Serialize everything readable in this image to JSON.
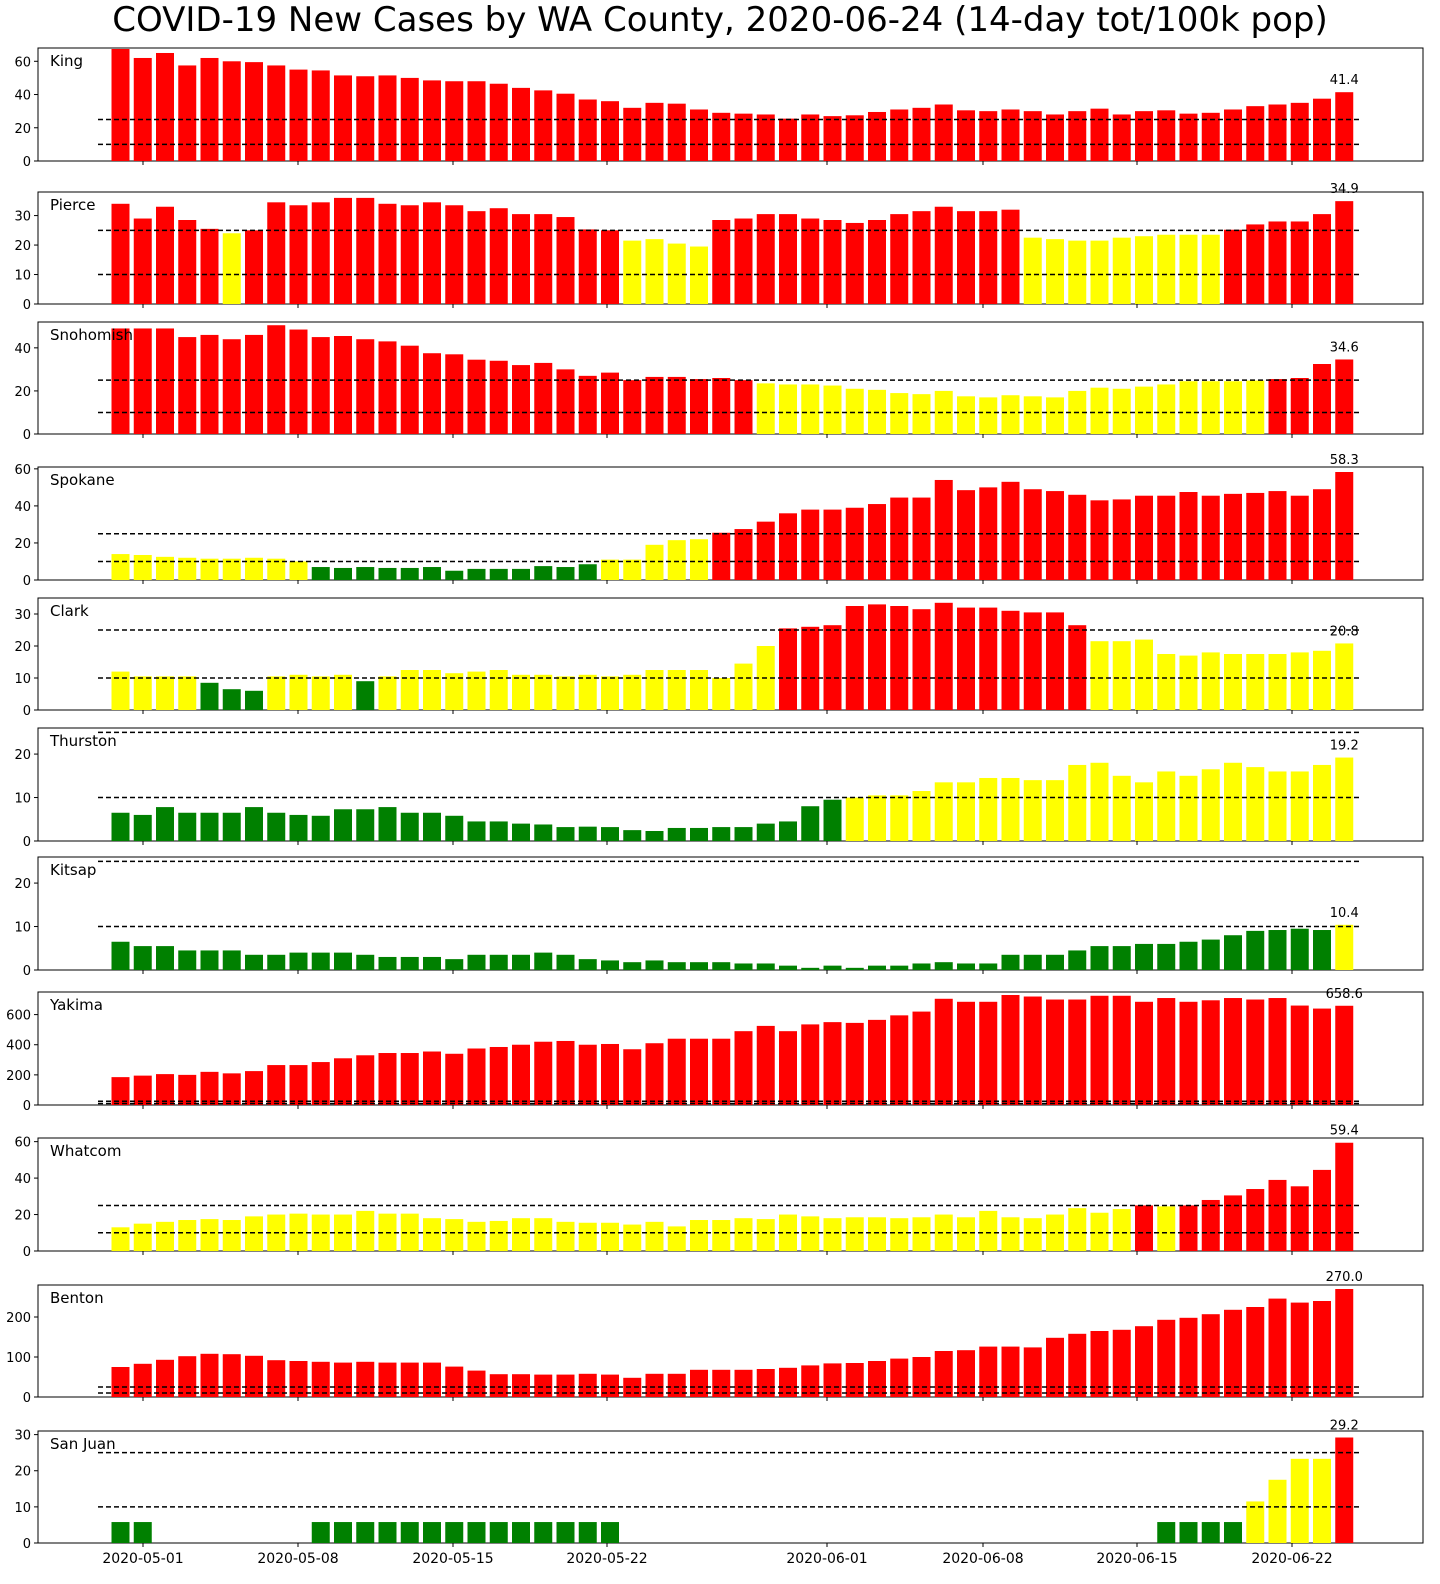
{
  "title": "COVID-19 New Cases by WA County, 2020-06-24 (14-day tot/100k pop)",
  "colors": {
    "high": "#ff0000",
    "medium": "#ffff00",
    "low": "#008000",
    "threshold_line": "#000000"
  },
  "x_ticks": [
    "2020-05-01",
    "2020-05-08",
    "2020-05-15",
    "2020-05-22",
    "2020-06-01",
    "2020-06-08",
    "2020-06-15",
    "2020-06-22"
  ],
  "chart_data": [
    {
      "type": "bar",
      "county": "King",
      "ylim": [
        0,
        68
      ],
      "yticks": [
        0,
        20,
        40,
        60
      ],
      "thresholds": [
        10,
        25
      ],
      "last_label": "41.4",
      "values": [
        68.5,
        62,
        65,
        57.5,
        62,
        60,
        59.5,
        57.5,
        55,
        54.5,
        51.5,
        51,
        51.5,
        50,
        48.5,
        48,
        48,
        46.5,
        44,
        42.5,
        40.5,
        37,
        36,
        32,
        35,
        34.5,
        31,
        29,
        28.5,
        28,
        25.5,
        28,
        27,
        27.5,
        29.5,
        31,
        32,
        34,
        30.5,
        30,
        31,
        30,
        28,
        30,
        31.5,
        28,
        30,
        30.5,
        28.5,
        29,
        31,
        33,
        34,
        35,
        37.5,
        41.4
      ]
    },
    {
      "type": "bar",
      "county": "Pierce",
      "ylim": [
        0,
        38
      ],
      "yticks": [
        0,
        10,
        20,
        30
      ],
      "thresholds": [
        10,
        25
      ],
      "last_label": "34.9",
      "values": [
        34,
        29,
        33,
        28.5,
        25.5,
        24,
        25,
        34.5,
        33.5,
        34.5,
        36,
        36,
        34,
        33.5,
        34.5,
        33.5,
        31.5,
        32.5,
        30.5,
        30.5,
        29.5,
        25.3,
        25,
        21.5,
        22,
        20.5,
        19.5,
        28.5,
        29,
        30.5,
        30.5,
        29,
        28.5,
        27.5,
        28.5,
        30.5,
        31.5,
        33,
        31.5,
        31.5,
        32,
        22.5,
        22,
        21.5,
        21.5,
        22.5,
        23,
        23.5,
        23.5,
        23.5,
        25.2,
        27,
        28,
        28,
        30.5,
        34.9
      ]
    },
    {
      "type": "bar",
      "county": "Snohomish",
      "ylim": [
        0,
        52
      ],
      "yticks": [
        0,
        20,
        40
      ],
      "thresholds": [
        10,
        25
      ],
      "last_label": "34.6",
      "values": [
        49,
        49,
        49,
        45,
        46,
        44,
        46,
        50.5,
        48.5,
        45,
        45.5,
        44,
        43,
        41,
        37.5,
        37,
        34.5,
        34,
        32,
        33,
        30,
        27,
        28.5,
        25,
        26.5,
        26.5,
        25.5,
        26,
        25,
        23.5,
        23,
        23,
        22.5,
        21,
        20.5,
        19,
        18.5,
        20,
        17.5,
        17,
        18,
        17.5,
        17,
        20,
        21.5,
        21,
        22,
        23,
        24.5,
        24.5,
        24.5,
        24.8,
        25.5,
        26,
        32.5,
        34.6
      ]
    },
    {
      "type": "bar",
      "county": "Spokane",
      "ylim": [
        0,
        61
      ],
      "yticks": [
        0,
        20,
        40,
        60
      ],
      "thresholds": [
        10,
        25
      ],
      "last_label": "58.3",
      "values": [
        14,
        13.5,
        12.5,
        12,
        11.5,
        11.5,
        12,
        11.5,
        10,
        7,
        6.5,
        7,
        6.5,
        6.5,
        7,
        5,
        6,
        6,
        6,
        7.5,
        7,
        8.5,
        11,
        11,
        19,
        21.5,
        22,
        25.5,
        27.5,
        31.5,
        36,
        38,
        38,
        39,
        41,
        44.5,
        44.5,
        54,
        48.5,
        50,
        53,
        49,
        48,
        46,
        43,
        43.5,
        45.5,
        45.5,
        47.5,
        45.5,
        46.5,
        47,
        48,
        45.5,
        49,
        58.3
      ]
    },
    {
      "type": "bar",
      "county": "Clark",
      "ylim": [
        0,
        35
      ],
      "yticks": [
        0,
        10,
        20,
        30
      ],
      "thresholds": [
        10,
        25
      ],
      "last_label": "20.8",
      "values": [
        12,
        10.5,
        10.5,
        10.5,
        8.5,
        6.5,
        6,
        10.5,
        11,
        10.5,
        11,
        9,
        10.5,
        12.5,
        12.5,
        11.5,
        12,
        12.5,
        11,
        11,
        10.5,
        11,
        10.5,
        11,
        12.5,
        12.5,
        12.5,
        10,
        14.5,
        20,
        25.5,
        26,
        26.5,
        32.5,
        33,
        32.5,
        31.5,
        33.5,
        32,
        32,
        31,
        30.5,
        30.5,
        26.5,
        21.5,
        21.5,
        22,
        17.5,
        17,
        18,
        17.5,
        17.5,
        17.5,
        18,
        18.5,
        20.8
      ]
    },
    {
      "type": "bar",
      "county": "Thurston",
      "ylim": [
        0,
        26
      ],
      "yticks": [
        0,
        10,
        20
      ],
      "thresholds": [
        10,
        25
      ],
      "last_label": "19.2",
      "values": [
        6.5,
        6,
        7.8,
        6.5,
        6.5,
        6.5,
        7.8,
        6.5,
        6,
        5.8,
        7.3,
        7.3,
        7.8,
        6.5,
        6.5,
        5.8,
        4.5,
        4.5,
        4,
        3.8,
        3.2,
        3.3,
        3.2,
        2.5,
        2.3,
        3,
        3,
        3.2,
        3.2,
        4,
        4.5,
        8,
        9.5,
        10,
        10.5,
        10.5,
        11.5,
        13.5,
        13.5,
        14.5,
        14.5,
        14,
        14,
        17.5,
        18,
        15,
        13.5,
        16,
        15,
        16.5,
        18,
        17,
        16,
        16,
        17.5,
        19.2
      ]
    },
    {
      "type": "bar",
      "county": "Kitsap",
      "ylim": [
        0,
        26
      ],
      "yticks": [
        0,
        10,
        20
      ],
      "thresholds": [
        10,
        25
      ],
      "last_label": "10.4",
      "values": [
        6.5,
        5.5,
        5.5,
        4.5,
        4.5,
        4.5,
        3.5,
        3.5,
        4,
        4,
        4,
        3.5,
        3,
        3,
        3,
        2.5,
        3.5,
        3.5,
        3.5,
        4,
        3.5,
        2.5,
        2.2,
        1.8,
        2.2,
        1.8,
        1.8,
        1.8,
        1.5,
        1.5,
        1,
        0.5,
        1,
        0.5,
        1,
        1,
        1.5,
        1.8,
        1.5,
        1.5,
        3.5,
        3.5,
        3.5,
        4.5,
        5.5,
        5.5,
        6,
        6,
        6.5,
        7,
        8,
        9,
        9.2,
        9.5,
        9.2,
        10.4
      ]
    },
    {
      "type": "bar",
      "county": "Yakima",
      "ylim": [
        0,
        750
      ],
      "yticks": [
        0,
        200,
        400,
        600
      ],
      "thresholds": [
        10,
        25
      ],
      "last_label": "658.6",
      "values": [
        185,
        195,
        205,
        200,
        220,
        210,
        225,
        265,
        265,
        285,
        310,
        330,
        345,
        345,
        355,
        340,
        375,
        385,
        400,
        420,
        425,
        400,
        405,
        370,
        410,
        440,
        440,
        440,
        490,
        525,
        490,
        535,
        550,
        545,
        565,
        595,
        620,
        705,
        685,
        685,
        730,
        720,
        700,
        700,
        725,
        725,
        685,
        710,
        685,
        695,
        710,
        700,
        710,
        660,
        640,
        658.6
      ]
    },
    {
      "type": "bar",
      "county": "Whatcom",
      "ylim": [
        0,
        62
      ],
      "yticks": [
        0,
        20,
        40,
        60
      ],
      "thresholds": [
        10,
        25
      ],
      "last_label": "59.4",
      "values": [
        13,
        15,
        16,
        17,
        17.5,
        17,
        19,
        20,
        20.5,
        20,
        20,
        22,
        20.5,
        20.5,
        18,
        17.5,
        16,
        16.5,
        18,
        18,
        16,
        15.5,
        15.5,
        14.5,
        16,
        13.5,
        17,
        17,
        18,
        17.5,
        20,
        19,
        18,
        18.5,
        18.5,
        18,
        18.5,
        20,
        18.5,
        22,
        18.5,
        18,
        20,
        23.5,
        21,
        23,
        25,
        24.5,
        25,
        28,
        30.5,
        34,
        39,
        35.5,
        44.5,
        59.4
      ]
    },
    {
      "type": "bar",
      "county": "Benton",
      "ylim": [
        0,
        280
      ],
      "yticks": [
        0,
        100,
        200
      ],
      "thresholds": [
        10,
        25
      ],
      "last_label": "270.0",
      "values": [
        75,
        83,
        93,
        102,
        108,
        107,
        103,
        92,
        90,
        88,
        86,
        88,
        86,
        86,
        86,
        76,
        66,
        57,
        57,
        56,
        56,
        58,
        56,
        48,
        58,
        58,
        68,
        68,
        68,
        70,
        73,
        79,
        84,
        85,
        90,
        96,
        100,
        115,
        117,
        126,
        126,
        124,
        148,
        158,
        165,
        168,
        177,
        193,
        198,
        207,
        218,
        225,
        246,
        236,
        240,
        270
      ]
    },
    {
      "type": "bar",
      "county": "San Juan",
      "ylim": [
        0,
        31
      ],
      "yticks": [
        0,
        10,
        20,
        30
      ],
      "thresholds": [
        10,
        25
      ],
      "last_label": "29.2",
      "values": [
        5.8,
        5.8,
        0,
        0,
        0,
        0,
        0,
        0,
        0,
        5.8,
        5.8,
        5.8,
        5.8,
        5.8,
        5.8,
        5.8,
        5.8,
        5.8,
        5.8,
        5.8,
        5.8,
        5.8,
        5.8,
        0,
        0,
        0,
        0,
        0,
        0,
        0,
        0,
        0,
        0,
        0,
        0,
        0,
        0,
        0,
        0,
        0,
        0,
        0,
        0,
        0,
        0,
        0,
        0,
        5.8,
        5.8,
        5.8,
        5.8,
        11.5,
        17.5,
        23.3,
        23.3,
        29.2
      ]
    }
  ]
}
